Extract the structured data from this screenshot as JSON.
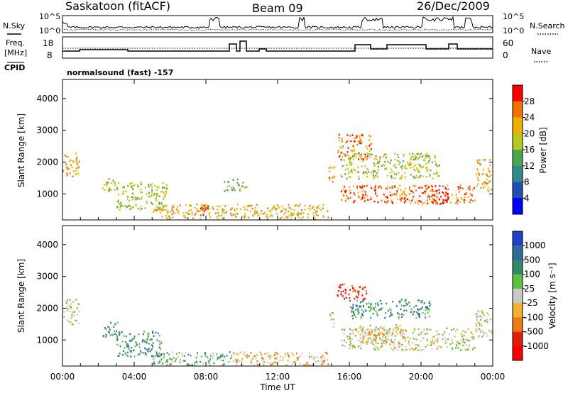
{
  "header": {
    "station": "Saskatoon (fitACF)",
    "beam": "Beam 09",
    "date": "26/Dec/2009"
  },
  "noise_panel": {
    "left_label": "N.Sky",
    "right_label": "N.Search",
    "left_ticks": [
      "10^5",
      "10^0"
    ],
    "right_ticks": [
      "10^5",
      "10^0"
    ]
  },
  "freq_panel": {
    "left_label_line1": "Freq.",
    "left_label_line2": "[MHz]",
    "right_label": "Nave",
    "left_ticks": [
      "18",
      "8"
    ],
    "right_ticks": [
      "60",
      "0"
    ],
    "cpid_label": "CPID",
    "cpid_value": "normalsound (fast) -157"
  },
  "chart_data": [
    {
      "type": "heatmap",
      "name": "power",
      "ylabel": "Slant Range [km]",
      "ylim": [
        180,
        4600
      ],
      "yticks": [
        "1000",
        "2000",
        "3000",
        "4000"
      ],
      "xlim": [
        0,
        24
      ],
      "colorbar": {
        "label": "Power [dB]",
        "ticks": [
          "4",
          "8",
          "12",
          "16",
          "20",
          "24",
          "28"
        ],
        "colors": [
          "#0000ff",
          "#1f4fb4",
          "#2f8a8a",
          "#4aa84a",
          "#b8c820",
          "#f0b000",
          "#f07000",
          "#ff0000"
        ]
      },
      "echo_regions": [
        {
          "t": [
            0.0,
            0.9
          ],
          "r": [
            1500,
            2300
          ],
          "level": 5
        },
        {
          "t": [
            2.2,
            3.2
          ],
          "r": [
            1100,
            1500
          ],
          "level": 4
        },
        {
          "t": [
            3.0,
            5.8
          ],
          "r": [
            500,
            1400
          ],
          "level": 4
        },
        {
          "t": [
            5.0,
            14.8
          ],
          "r": [
            200,
            700
          ],
          "level": 5
        },
        {
          "t": [
            7.5,
            8.2
          ],
          "r": [
            350,
            650
          ],
          "level": 7
        },
        {
          "t": [
            9.0,
            10.3
          ],
          "r": [
            1100,
            1500
          ],
          "level": 3
        },
        {
          "t": [
            14.8,
            15.2
          ],
          "r": [
            1400,
            1900
          ],
          "level": 6
        },
        {
          "t": [
            15.3,
            17.2
          ],
          "r": [
            2100,
            2900
          ],
          "level": 6
        },
        {
          "t": [
            15.5,
            21.0
          ],
          "r": [
            1500,
            2300
          ],
          "level": 4
        },
        {
          "t": [
            15.5,
            23.0
          ],
          "r": [
            700,
            1300
          ],
          "level": 6
        },
        {
          "t": [
            20.5,
            21.5
          ],
          "r": [
            700,
            1200
          ],
          "level": 7
        },
        {
          "t": [
            23.0,
            24.0
          ],
          "r": [
            1100,
            2100
          ],
          "level": 5
        }
      ]
    },
    {
      "type": "heatmap",
      "name": "velocity",
      "ylabel": "Slant Range [km]",
      "ylim": [
        180,
        4600
      ],
      "yticks": [
        "1000",
        "2000",
        "3000",
        "4000"
      ],
      "xlim": [
        0,
        24
      ],
      "xticks": [
        "00:00",
        "04:00",
        "08:00",
        "12:00",
        "16:00",
        "20:00",
        "00:00"
      ],
      "xlabel": "Time UT",
      "colorbar": {
        "label": "Velocity [m s⁻¹]",
        "ticks": [
          "1000",
          "500",
          "100",
          "25",
          "-25",
          "-100",
          "-500",
          "-1000"
        ],
        "colors": [
          "#2040c8",
          "#2f6a9a",
          "#2f8a6a",
          "#5fc040",
          "#c8c8c8",
          "#f0b030",
          "#f07810",
          "#e02000",
          "#ff0000"
        ]
      },
      "echo_regions": [
        {
          "t": [
            0.0,
            0.9
          ],
          "r": [
            1500,
            2300
          ],
          "level": 4
        },
        {
          "t": [
            2.2,
            3.2
          ],
          "r": [
            1100,
            1600
          ],
          "level": 2
        },
        {
          "t": [
            3.0,
            5.5
          ],
          "r": [
            500,
            1300
          ],
          "level": 2
        },
        {
          "t": [
            5.0,
            9.5
          ],
          "r": [
            200,
            650
          ],
          "level": 3
        },
        {
          "t": [
            9.5,
            14.8
          ],
          "r": [
            200,
            650
          ],
          "level": 5
        },
        {
          "t": [
            14.8,
            15.2
          ],
          "r": [
            1400,
            1900
          ],
          "level": 4
        },
        {
          "t": [
            15.3,
            17.0
          ],
          "r": [
            2300,
            2800
          ],
          "level": 7
        },
        {
          "t": [
            16.0,
            20.5
          ],
          "r": [
            1700,
            2300
          ],
          "level": 2
        },
        {
          "t": [
            15.5,
            23.0
          ],
          "r": [
            700,
            1400
          ],
          "level": 4
        },
        {
          "t": [
            16.5,
            19.0
          ],
          "r": [
            900,
            1500
          ],
          "level": 5
        },
        {
          "t": [
            23.0,
            24.0
          ],
          "r": [
            1100,
            2000
          ],
          "level": 4
        }
      ]
    }
  ]
}
